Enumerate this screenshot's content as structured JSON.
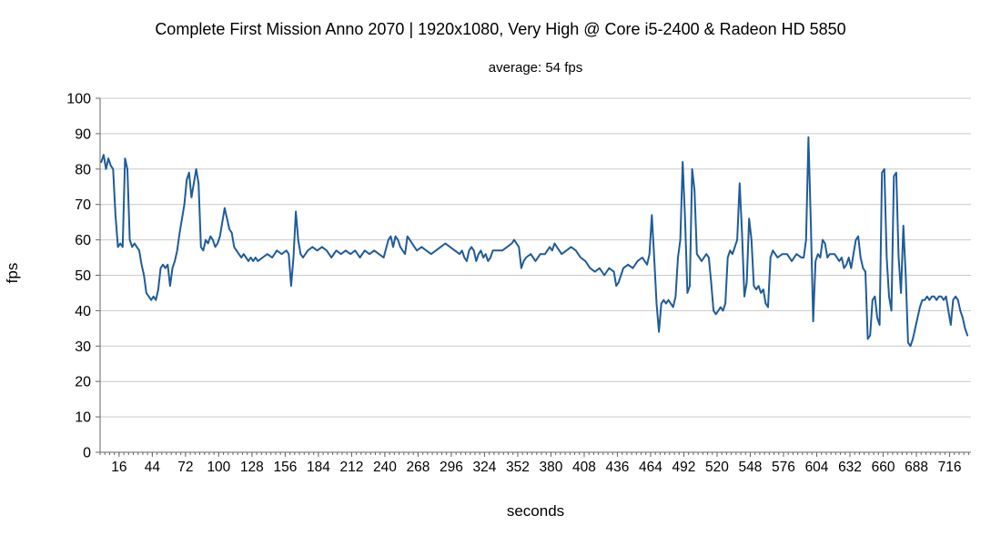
{
  "page": {
    "background": "#ffffff"
  },
  "chart_data": {
    "type": "line",
    "title": "Complete First Mission Anno 2070 | 1920x1080, Very High @ Core i5-2400 & Radeon HD 5850",
    "subtitle": "average: 54 fps",
    "xlabel": "seconds",
    "ylabel": "fps",
    "average_fps": 54,
    "ylim": [
      0,
      100
    ],
    "ytick_step": 10,
    "x_range": [
      0,
      734
    ],
    "xticks": [
      16,
      44,
      72,
      100,
      128,
      156,
      184,
      212,
      240,
      268,
      296,
      324,
      352,
      380,
      408,
      436,
      464,
      492,
      520,
      548,
      576,
      604,
      632,
      660,
      688,
      716
    ],
    "minor_tick_step": 4,
    "grid": true,
    "legend": "none",
    "line_color": "#1F5C99",
    "grid_color": "#C9C9C9",
    "axis_color": "#666666",
    "text_color": "#000000",
    "series_name": "fps",
    "points": [
      [
        1,
        82
      ],
      [
        3,
        84
      ],
      [
        5,
        80
      ],
      [
        7,
        83
      ],
      [
        9,
        81
      ],
      [
        11,
        80
      ],
      [
        13,
        67
      ],
      [
        15,
        58
      ],
      [
        17,
        59
      ],
      [
        19,
        58
      ],
      [
        21,
        83
      ],
      [
        23,
        80
      ],
      [
        25,
        60
      ],
      [
        27,
        58
      ],
      [
        29,
        59
      ],
      [
        31,
        58
      ],
      [
        33,
        57
      ],
      [
        35,
        53
      ],
      [
        37,
        50
      ],
      [
        39,
        45
      ],
      [
        41,
        44
      ],
      [
        43,
        43
      ],
      [
        45,
        44
      ],
      [
        47,
        43
      ],
      [
        49,
        46
      ],
      [
        51,
        52
      ],
      [
        53,
        53
      ],
      [
        55,
        52
      ],
      [
        57,
        53
      ],
      [
        59,
        47
      ],
      [
        61,
        52
      ],
      [
        63,
        54
      ],
      [
        65,
        57
      ],
      [
        67,
        62
      ],
      [
        69,
        66
      ],
      [
        71,
        70
      ],
      [
        73,
        77
      ],
      [
        75,
        79
      ],
      [
        77,
        72
      ],
      [
        79,
        76
      ],
      [
        81,
        80
      ],
      [
        83,
        76
      ],
      [
        85,
        58
      ],
      [
        87,
        57
      ],
      [
        89,
        60
      ],
      [
        91,
        59
      ],
      [
        93,
        61
      ],
      [
        95,
        60
      ],
      [
        97,
        58
      ],
      [
        99,
        59
      ],
      [
        101,
        61
      ],
      [
        103,
        65
      ],
      [
        105,
        69
      ],
      [
        107,
        66
      ],
      [
        109,
        63
      ],
      [
        111,
        62
      ],
      [
        113,
        58
      ],
      [
        115,
        57
      ],
      [
        117,
        56
      ],
      [
        119,
        55
      ],
      [
        121,
        56
      ],
      [
        123,
        55
      ],
      [
        125,
        54
      ],
      [
        127,
        55
      ],
      [
        129,
        54
      ],
      [
        131,
        55
      ],
      [
        133,
        54
      ],
      [
        137,
        55
      ],
      [
        141,
        56
      ],
      [
        145,
        55
      ],
      [
        149,
        57
      ],
      [
        153,
        56
      ],
      [
        157,
        57
      ],
      [
        159,
        56
      ],
      [
        161,
        47
      ],
      [
        163,
        55
      ],
      [
        165,
        68
      ],
      [
        167,
        60
      ],
      [
        169,
        56
      ],
      [
        171,
        55
      ],
      [
        175,
        57
      ],
      [
        179,
        58
      ],
      [
        183,
        57
      ],
      [
        187,
        58
      ],
      [
        191,
        57
      ],
      [
        195,
        55
      ],
      [
        199,
        57
      ],
      [
        203,
        56
      ],
      [
        207,
        57
      ],
      [
        211,
        56
      ],
      [
        215,
        57
      ],
      [
        219,
        55
      ],
      [
        223,
        57
      ],
      [
        227,
        56
      ],
      [
        231,
        57
      ],
      [
        235,
        56
      ],
      [
        239,
        55
      ],
      [
        243,
        60
      ],
      [
        245,
        61
      ],
      [
        247,
        58
      ],
      [
        249,
        61
      ],
      [
        251,
        60
      ],
      [
        253,
        58
      ],
      [
        255,
        57
      ],
      [
        257,
        56
      ],
      [
        259,
        61
      ],
      [
        261,
        60
      ],
      [
        263,
        59
      ],
      [
        265,
        58
      ],
      [
        267,
        57
      ],
      [
        271,
        58
      ],
      [
        275,
        57
      ],
      [
        279,
        56
      ],
      [
        283,
        57
      ],
      [
        287,
        58
      ],
      [
        291,
        59
      ],
      [
        295,
        58
      ],
      [
        299,
        57
      ],
      [
        303,
        56
      ],
      [
        305,
        57
      ],
      [
        307,
        55
      ],
      [
        309,
        54
      ],
      [
        311,
        57
      ],
      [
        313,
        58
      ],
      [
        315,
        57
      ],
      [
        317,
        54
      ],
      [
        319,
        56
      ],
      [
        321,
        57
      ],
      [
        323,
        55
      ],
      [
        325,
        56
      ],
      [
        327,
        54
      ],
      [
        329,
        55
      ],
      [
        331,
        57
      ],
      [
        335,
        57
      ],
      [
        339,
        57
      ],
      [
        343,
        58
      ],
      [
        347,
        59
      ],
      [
        349,
        60
      ],
      [
        351,
        59
      ],
      [
        353,
        58
      ],
      [
        355,
        52
      ],
      [
        357,
        54
      ],
      [
        359,
        55
      ],
      [
        363,
        56
      ],
      [
        367,
        54
      ],
      [
        371,
        56
      ],
      [
        375,
        56
      ],
      [
        379,
        58
      ],
      [
        381,
        57
      ],
      [
        383,
        59
      ],
      [
        385,
        58
      ],
      [
        389,
        56
      ],
      [
        393,
        57
      ],
      [
        397,
        58
      ],
      [
        401,
        57
      ],
      [
        405,
        55
      ],
      [
        409,
        54
      ],
      [
        413,
        52
      ],
      [
        417,
        51
      ],
      [
        421,
        52
      ],
      [
        425,
        50
      ],
      [
        429,
        52
      ],
      [
        433,
        51
      ],
      [
        435,
        47
      ],
      [
        437,
        48
      ],
      [
        439,
        50
      ],
      [
        441,
        52
      ],
      [
        445,
        53
      ],
      [
        449,
        52
      ],
      [
        453,
        54
      ],
      [
        457,
        55
      ],
      [
        459,
        54
      ],
      [
        461,
        53
      ],
      [
        463,
        56
      ],
      [
        465,
        67
      ],
      [
        467,
        55
      ],
      [
        469,
        42
      ],
      [
        471,
        34
      ],
      [
        473,
        42
      ],
      [
        475,
        43
      ],
      [
        477,
        42
      ],
      [
        479,
        43
      ],
      [
        481,
        42
      ],
      [
        483,
        41
      ],
      [
        485,
        44
      ],
      [
        487,
        55
      ],
      [
        489,
        60
      ],
      [
        491,
        82
      ],
      [
        493,
        66
      ],
      [
        495,
        45
      ],
      [
        497,
        47
      ],
      [
        499,
        80
      ],
      [
        501,
        74
      ],
      [
        503,
        56
      ],
      [
        505,
        55
      ],
      [
        507,
        54
      ],
      [
        509,
        55
      ],
      [
        511,
        56
      ],
      [
        513,
        55
      ],
      [
        515,
        48
      ],
      [
        517,
        40
      ],
      [
        519,
        39
      ],
      [
        521,
        40
      ],
      [
        523,
        41
      ],
      [
        525,
        40
      ],
      [
        527,
        42
      ],
      [
        529,
        55
      ],
      [
        531,
        57
      ],
      [
        533,
        56
      ],
      [
        535,
        58
      ],
      [
        537,
        60
      ],
      [
        539,
        76
      ],
      [
        541,
        62
      ],
      [
        543,
        44
      ],
      [
        545,
        48
      ],
      [
        547,
        66
      ],
      [
        549,
        60
      ],
      [
        551,
        47
      ],
      [
        553,
        46
      ],
      [
        555,
        47
      ],
      [
        557,
        45
      ],
      [
        559,
        46
      ],
      [
        561,
        42
      ],
      [
        563,
        41
      ],
      [
        565,
        55
      ],
      [
        567,
        57
      ],
      [
        569,
        56
      ],
      [
        571,
        55
      ],
      [
        575,
        56
      ],
      [
        579,
        56
      ],
      [
        583,
        54
      ],
      [
        587,
        56
      ],
      [
        591,
        55
      ],
      [
        593,
        55
      ],
      [
        595,
        60
      ],
      [
        597,
        89
      ],
      [
        599,
        65
      ],
      [
        601,
        37
      ],
      [
        603,
        54
      ],
      [
        605,
        56
      ],
      [
        607,
        55
      ],
      [
        609,
        60
      ],
      [
        611,
        59
      ],
      [
        613,
        55
      ],
      [
        615,
        56
      ],
      [
        619,
        56
      ],
      [
        623,
        54
      ],
      [
        625,
        55
      ],
      [
        627,
        52
      ],
      [
        629,
        53
      ],
      [
        631,
        55
      ],
      [
        633,
        52
      ],
      [
        635,
        56
      ],
      [
        637,
        60
      ],
      [
        639,
        61
      ],
      [
        641,
        55
      ],
      [
        643,
        52
      ],
      [
        645,
        51
      ],
      [
        647,
        32
      ],
      [
        649,
        33
      ],
      [
        651,
        43
      ],
      [
        653,
        44
      ],
      [
        655,
        38
      ],
      [
        657,
        36
      ],
      [
        659,
        79
      ],
      [
        661,
        80
      ],
      [
        663,
        55
      ],
      [
        665,
        44
      ],
      [
        667,
        40
      ],
      [
        669,
        78
      ],
      [
        671,
        79
      ],
      [
        673,
        55
      ],
      [
        675,
        45
      ],
      [
        677,
        64
      ],
      [
        679,
        50
      ],
      [
        681,
        31
      ],
      [
        683,
        30
      ],
      [
        685,
        32
      ],
      [
        687,
        35
      ],
      [
        689,
        38
      ],
      [
        691,
        41
      ],
      [
        693,
        43
      ],
      [
        695,
        43
      ],
      [
        697,
        44
      ],
      [
        699,
        43
      ],
      [
        701,
        44
      ],
      [
        703,
        44
      ],
      [
        705,
        43
      ],
      [
        707,
        44
      ],
      [
        709,
        44
      ],
      [
        711,
        43
      ],
      [
        713,
        44
      ],
      [
        715,
        40
      ],
      [
        717,
        36
      ],
      [
        719,
        43
      ],
      [
        721,
        44
      ],
      [
        723,
        43
      ],
      [
        725,
        40
      ],
      [
        727,
        38
      ],
      [
        729,
        35
      ],
      [
        731,
        33
      ]
    ]
  }
}
